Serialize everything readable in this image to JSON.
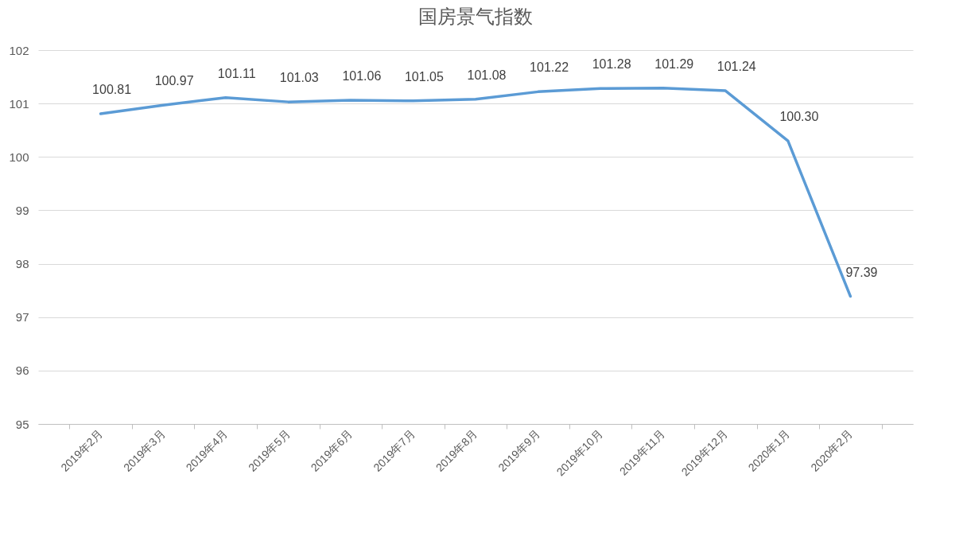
{
  "chart_data": {
    "type": "line",
    "title": "国房景气指数",
    "categories": [
      "2019年2月",
      "2019年3月",
      "2019年4月",
      "2019年5月",
      "2019年6月",
      "2019年7月",
      "2019年8月",
      "2019年9月",
      "2019年10月",
      "2019年11月",
      "2019年12月",
      "2020年1月",
      "2020年2月"
    ],
    "series": [
      {
        "color": "#5b9bd5",
        "values": [
          100.81,
          100.97,
          101.11,
          101.03,
          101.06,
          101.05,
          101.08,
          101.22,
          101.28,
          101.29,
          101.24,
          100.3,
          97.39
        ],
        "value_labels": [
          "100.81",
          "100.97",
          "101.11",
          "101.03",
          "101.06",
          "101.05",
          "101.08",
          "101.22",
          "101.28",
          "101.29",
          "101.24",
          "100.30",
          "97.39"
        ]
      }
    ],
    "ylim": [
      95,
      102
    ],
    "yticks": [
      95,
      96,
      97,
      98,
      99,
      100,
      101,
      102
    ],
    "grid": "y",
    "marker": "none",
    "line_style": "solid"
  }
}
